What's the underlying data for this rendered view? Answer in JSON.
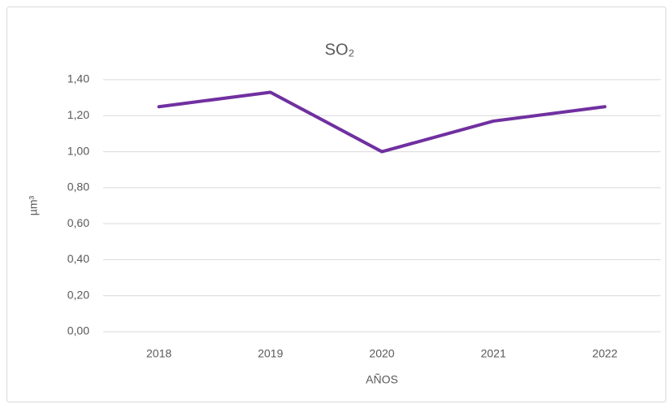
{
  "chart_data": {
    "type": "line",
    "title": "SO₂",
    "xlabel": "AÑOS",
    "ylabel": "µm³",
    "categories": [
      "2018",
      "2019",
      "2020",
      "2021",
      "2022"
    ],
    "series": [
      {
        "name": "SO₂",
        "color": "#7030a0",
        "values": [
          1.25,
          1.33,
          1.0,
          1.17,
          1.25
        ]
      }
    ],
    "ylim": [
      0,
      1.4
    ],
    "yticks": [
      {
        "value": 0,
        "label": "0,00"
      },
      {
        "value": 0.2,
        "label": "0,20"
      },
      {
        "value": 0.4,
        "label": "0,40"
      },
      {
        "value": 0.6,
        "label": "0,60"
      },
      {
        "value": 0.8,
        "label": "0,80"
      },
      {
        "value": 1.0,
        "label": "1,00"
      },
      {
        "value": 1.2,
        "label": "1,20"
      },
      {
        "value": 1.4,
        "label": "1,40"
      }
    ],
    "grid": true
  }
}
